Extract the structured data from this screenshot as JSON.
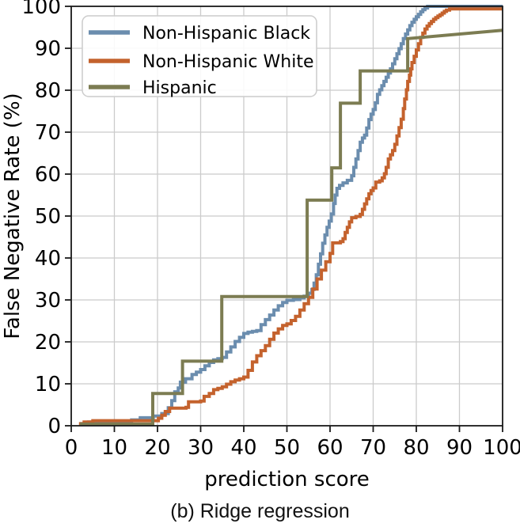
{
  "caption": "(b) Ridge regression",
  "colors": {
    "grid": "#cbcbcb",
    "spine": "#1a1a1a",
    "text": "#000000",
    "legend_border": "#cccccc",
    "series_blue": "#6b8dae",
    "series_orange": "#c4622d",
    "series_olive": "#7c7c52"
  },
  "chart_data": {
    "type": "line",
    "title": "",
    "xlabel": "prediction score",
    "ylabel": "False Negative Rate (%)",
    "xlim": [
      0,
      100
    ],
    "ylim": [
      0,
      100
    ],
    "xticks": [
      0,
      10,
      20,
      30,
      40,
      50,
      60,
      70,
      80,
      90,
      100
    ],
    "yticks": [
      0,
      10,
      20,
      30,
      40,
      50,
      60,
      70,
      80,
      90,
      100
    ],
    "grid": true,
    "legend_position": "upper left",
    "series": [
      {
        "name": "Non-Hispanic Black",
        "color": "#6b8dae",
        "interp": "step",
        "points": [
          [
            2,
            0.5
          ],
          [
            4,
            0.9
          ],
          [
            14,
            1.4
          ],
          [
            16,
            1.9
          ],
          [
            19,
            2.3
          ],
          [
            21,
            2.9
          ],
          [
            22.5,
            4.3
          ],
          [
            23.3,
            6
          ],
          [
            24,
            8.1
          ],
          [
            24.8,
            9
          ],
          [
            25.3,
            10.4
          ],
          [
            26.5,
            11.2
          ],
          [
            28,
            12.2
          ],
          [
            29,
            12.8
          ],
          [
            30,
            13.4
          ],
          [
            31,
            14.3
          ],
          [
            32,
            15.1
          ],
          [
            33,
            15.7
          ],
          [
            34,
            16
          ],
          [
            35,
            16.3
          ],
          [
            36,
            17.6
          ],
          [
            37,
            18.8
          ],
          [
            38,
            20.1
          ],
          [
            39,
            21.1
          ],
          [
            40,
            22
          ],
          [
            41,
            22.3
          ],
          [
            42,
            22.5
          ],
          [
            43,
            22.7
          ],
          [
            44,
            24.1
          ],
          [
            45,
            25.3
          ],
          [
            46,
            26.4
          ],
          [
            47,
            27.6
          ],
          [
            48,
            28.6
          ],
          [
            49,
            29.4
          ],
          [
            50,
            29.9
          ],
          [
            51.5,
            30.1
          ],
          [
            53,
            30.5
          ],
          [
            54,
            30.9
          ],
          [
            55,
            31.6
          ],
          [
            55.8,
            32.5
          ],
          [
            56.3,
            34
          ],
          [
            56.8,
            36
          ],
          [
            57.3,
            38.5
          ],
          [
            57.8,
            41
          ],
          [
            58.3,
            43.5
          ],
          [
            58.8,
            45.5
          ],
          [
            59.3,
            47.3
          ],
          [
            59.8,
            48.8
          ],
          [
            60.3,
            50.5
          ],
          [
            60.8,
            53
          ],
          [
            61.2,
            55
          ],
          [
            61.6,
            56.6
          ],
          [
            62.2,
            57.3
          ],
          [
            63,
            57.9
          ],
          [
            64,
            58.5
          ],
          [
            65,
            59.6
          ],
          [
            65.5,
            61.6
          ],
          [
            66,
            63.6
          ],
          [
            66.5,
            65.6
          ],
          [
            67,
            67.6
          ],
          [
            67.5,
            68.6
          ],
          [
            68,
            69.3
          ],
          [
            68.5,
            71
          ],
          [
            69,
            73
          ],
          [
            69.5,
            74.3
          ],
          [
            70,
            75.4
          ],
          [
            70.5,
            77
          ],
          [
            71,
            79
          ],
          [
            71.5,
            80.1
          ],
          [
            72,
            81.1
          ],
          [
            72.5,
            82.1
          ],
          [
            73,
            83.1
          ],
          [
            73.5,
            84.1
          ],
          [
            74,
            85.1
          ],
          [
            74.5,
            86.3
          ],
          [
            75,
            87.5
          ],
          [
            75.5,
            88.7
          ],
          [
            76,
            89.9
          ],
          [
            76.5,
            91.1
          ],
          [
            77,
            92.3
          ],
          [
            77.5,
            93.4
          ],
          [
            78,
            94.4
          ],
          [
            78.5,
            95.4
          ],
          [
            79,
            96.2
          ],
          [
            79.5,
            96.9
          ],
          [
            80,
            97.5
          ],
          [
            80.5,
            98.1
          ],
          [
            81,
            98.7
          ],
          [
            81.5,
            99.2
          ],
          [
            82,
            99.6
          ],
          [
            82.6,
            100
          ],
          [
            100,
            100
          ]
        ]
      },
      {
        "name": "Non-Hispanic White",
        "color": "#c4622d",
        "interp": "step",
        "points": [
          [
            1.8,
            0.5
          ],
          [
            3,
            0.9
          ],
          [
            5,
            1.2
          ],
          [
            19.5,
            1.2
          ],
          [
            20.2,
            1.8
          ],
          [
            21,
            2.5
          ],
          [
            21.8,
            3.4
          ],
          [
            22.8,
            4.2
          ],
          [
            26.6,
            4.4
          ],
          [
            27.2,
            5.7
          ],
          [
            30,
            5.9
          ],
          [
            30.8,
            7
          ],
          [
            32,
            7.7
          ],
          [
            33,
            8.6
          ],
          [
            34,
            8.9
          ],
          [
            35,
            9.3
          ],
          [
            36,
            9.9
          ],
          [
            37,
            10.5
          ],
          [
            38,
            10.9
          ],
          [
            39,
            11.2
          ],
          [
            40,
            11.6
          ],
          [
            41,
            13.2
          ],
          [
            42,
            15.2
          ],
          [
            43,
            16.7
          ],
          [
            44,
            17.9
          ],
          [
            45,
            19.1
          ],
          [
            46,
            20.6
          ],
          [
            47,
            22.1
          ],
          [
            48,
            23.1
          ],
          [
            49,
            23.9
          ],
          [
            50,
            24.3
          ],
          [
            51,
            25.1
          ],
          [
            52,
            26.1
          ],
          [
            53,
            27.6
          ],
          [
            54,
            29.1
          ],
          [
            55,
            30.6
          ],
          [
            56,
            32.6
          ],
          [
            57,
            35
          ],
          [
            58,
            37.1
          ],
          [
            59,
            39.1
          ],
          [
            60,
            41.1
          ],
          [
            60.6,
            43.6
          ],
          [
            62.4,
            43.9
          ],
          [
            63,
            44.6
          ],
          [
            63.5,
            46.1
          ],
          [
            64,
            47.3
          ],
          [
            64.5,
            48.6
          ],
          [
            65,
            49.6
          ],
          [
            66,
            49.9
          ],
          [
            67,
            50.4
          ],
          [
            67.5,
            51.6
          ],
          [
            68,
            52.9
          ],
          [
            68.5,
            54.1
          ],
          [
            69,
            55.3
          ],
          [
            69.5,
            56.1
          ],
          [
            70,
            56.7
          ],
          [
            70.6,
            58.1
          ],
          [
            71.5,
            58.4
          ],
          [
            72.1,
            59.1
          ],
          [
            72.6,
            60.1
          ],
          [
            73,
            61.6
          ],
          [
            73.5,
            63.6
          ],
          [
            74,
            64.6
          ],
          [
            74.5,
            65.6
          ],
          [
            75,
            67.1
          ],
          [
            75.5,
            69.1
          ],
          [
            76,
            71.1
          ],
          [
            76.5,
            73.1
          ],
          [
            77,
            75.6
          ],
          [
            77.3,
            77.9
          ],
          [
            77.7,
            80.1
          ],
          [
            78,
            82.1
          ],
          [
            78.4,
            83.6
          ],
          [
            78.7,
            85.1
          ],
          [
            79,
            86.6
          ],
          [
            79.5,
            88.1
          ],
          [
            80,
            89.6
          ],
          [
            80.5,
            91.1
          ],
          [
            81,
            92.6
          ],
          [
            81.5,
            93.6
          ],
          [
            82,
            94.6
          ],
          [
            82.5,
            95.3
          ],
          [
            83,
            95.9
          ],
          [
            83.5,
            96.4
          ],
          [
            84,
            96.9
          ],
          [
            84.5,
            97.3
          ],
          [
            85,
            97.7
          ],
          [
            85.5,
            98
          ],
          [
            86,
            98.4
          ],
          [
            86.5,
            98.8
          ],
          [
            87,
            99.1
          ],
          [
            87.7,
            99.4
          ],
          [
            100,
            99.4
          ]
        ]
      },
      {
        "name": "Hispanic",
        "color": "#7c7c52",
        "interp": "linear",
        "points": [
          [
            2,
            0.4
          ],
          [
            18.9,
            0.4
          ],
          [
            18.9,
            7.7
          ],
          [
            25.8,
            7.7
          ],
          [
            25.8,
            15.4
          ],
          [
            34.9,
            15.4
          ],
          [
            34.9,
            30.8
          ],
          [
            54.7,
            30.8
          ],
          [
            54.7,
            53.8
          ],
          [
            60.4,
            53.8
          ],
          [
            60.4,
            61.5
          ],
          [
            62.4,
            61.5
          ],
          [
            62.4,
            76.9
          ],
          [
            67,
            76.9
          ],
          [
            67,
            84.6
          ],
          [
            78,
            84.6
          ],
          [
            78,
            92.3
          ],
          [
            100,
            94.3
          ]
        ]
      }
    ]
  }
}
